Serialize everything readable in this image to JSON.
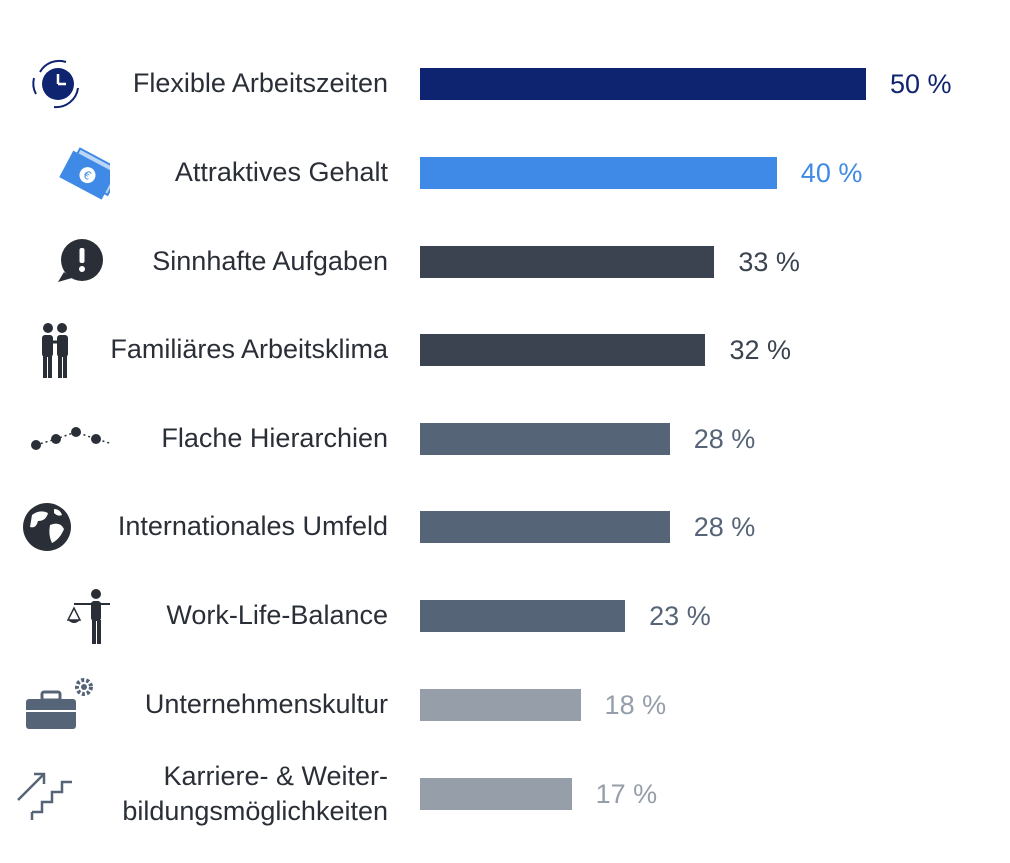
{
  "chart_data": {
    "type": "bar",
    "orientation": "horizontal",
    "xlim": [
      0,
      50
    ],
    "value_suffix": " %",
    "categories": [
      "Flexible Arbeitszeiten",
      "Attraktives Gehalt",
      "Sinnhafte Aufgaben",
      "Familiäres Arbeitsklima",
      "Flache Hierarchien",
      "Internationales Umfeld",
      "Work-Life-Balance",
      "Unternehmenskultur",
      "Karriere- & Weiter-bildungsmöglichkeiten"
    ],
    "values": [
      50,
      40,
      33,
      32,
      28,
      28,
      23,
      18,
      17
    ],
    "value_labels": [
      "50 %",
      "40 %",
      "33 %",
      "32 %",
      "28 %",
      "28 %",
      "23 %",
      "18 %",
      "17 %"
    ],
    "bar_colors": [
      "#0f2470",
      "#3f8ae6",
      "#3a434f",
      "#3a434f",
      "#566477",
      "#566477",
      "#566477",
      "#959ea9",
      "#959ea9"
    ],
    "label_colors": [
      "#0f2470",
      "#3f8ae6",
      "#3a434f",
      "#3a434f",
      "#566477",
      "#566477",
      "#566477",
      "#959ea9",
      "#959ea9"
    ],
    "icons": [
      "clock-cycle-icon",
      "money-bills-icon",
      "exclamation-bubble-icon",
      "family-icon",
      "hierarchy-dots-icon",
      "globe-icon",
      "balance-person-icon",
      "briefcase-gear-icon",
      "stairs-arrow-icon"
    ]
  }
}
